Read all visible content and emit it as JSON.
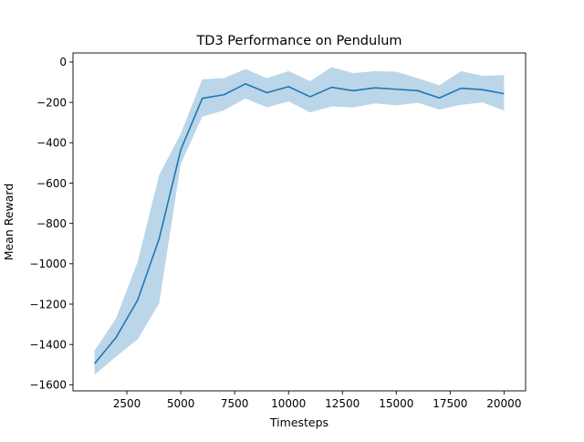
{
  "chart_data": {
    "type": "line",
    "title": "TD3 Performance on Pendulum",
    "xlabel": "Timesteps",
    "ylabel": "Mean Reward",
    "xlim": [
      0,
      21000
    ],
    "ylim": [
      -1630,
      45
    ],
    "xticks": [
      2500,
      5000,
      7500,
      10000,
      12500,
      15000,
      17500,
      20000
    ],
    "xtick_labels": [
      "2500",
      "5000",
      "7500",
      "10000",
      "12500",
      "15000",
      "17500",
      "20000"
    ],
    "yticks": [
      0,
      -200,
      -400,
      -600,
      -800,
      -1000,
      -1200,
      -1400,
      -1600
    ],
    "ytick_labels": [
      "0",
      "−200",
      "−400",
      "−600",
      "−800",
      "−1000",
      "−1200",
      "−1400",
      "−1600"
    ],
    "grid": false,
    "series": [
      {
        "color": "#1f77b4",
        "band_color": "#1f77b4",
        "band_opacity": 0.3,
        "x": [
          1000,
          2000,
          3000,
          4000,
          5000,
          6000,
          7000,
          8000,
          9000,
          10000,
          11000,
          12000,
          13000,
          14000,
          15000,
          16000,
          17000,
          18000,
          19000,
          20000
        ],
        "y": [
          -1495,
          -1365,
          -1180,
          -875,
          -435,
          -180,
          -162,
          -108,
          -152,
          -122,
          -172,
          -125,
          -142,
          -128,
          -135,
          -142,
          -178,
          -130,
          -137,
          -157
        ],
        "upper": [
          -1430,
          -1270,
          -990,
          -560,
          -355,
          -85,
          -80,
          -35,
          -80,
          -45,
          -95,
          -25,
          -55,
          -45,
          -48,
          -80,
          -115,
          -45,
          -68,
          -65
        ],
        "lower": [
          -1550,
          -1460,
          -1375,
          -1195,
          -505,
          -270,
          -240,
          -180,
          -225,
          -195,
          -250,
          -220,
          -225,
          -205,
          -215,
          -202,
          -235,
          -212,
          -200,
          -240
        ]
      }
    ]
  }
}
